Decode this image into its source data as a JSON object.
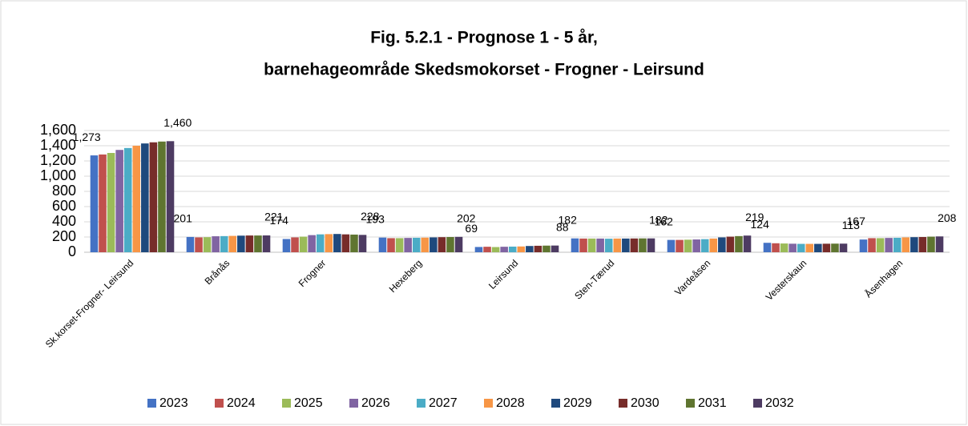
{
  "chart_data": {
    "type": "bar",
    "title": [
      "Fig. 5.2.1 - Prognose 1 - 5 år,",
      "barnehageområde Skedsmokorset - Frogner - Leirsund"
    ],
    "categories": [
      "Sk.korset-Frogner- Leirsund",
      "Brånås",
      "Frogner",
      "Hexeberg",
      "Leirsund",
      "Sten-Tærud",
      "Vardeåsen",
      "Vesterskaun",
      "Åsenhagen"
    ],
    "series": [
      {
        "name": "2023",
        "color": "#4472c4",
        "values": [
          1273,
          201,
          174,
          193,
          69,
          182,
          162,
          124,
          167
        ],
        "value_labels": [
          "1,273",
          "201",
          "174",
          "193",
          "69",
          "182",
          "162",
          "124",
          "167"
        ]
      },
      {
        "name": "2024",
        "color": "#c0504d",
        "values": [
          1285,
          195,
          195,
          185,
          72,
          180,
          162,
          118,
          185
        ]
      },
      {
        "name": "2025",
        "color": "#9bbb59",
        "values": [
          1305,
          198,
          205,
          185,
          68,
          180,
          165,
          115,
          185
        ]
      },
      {
        "name": "2026",
        "color": "#8064a2",
        "values": [
          1345,
          210,
          225,
          188,
          72,
          180,
          168,
          112,
          188
        ]
      },
      {
        "name": "2027",
        "color": "#4bacc6",
        "values": [
          1370,
          212,
          235,
          190,
          74,
          178,
          172,
          110,
          190
        ]
      },
      {
        "name": "2028",
        "color": "#f79646",
        "values": [
          1400,
          215,
          238,
          192,
          76,
          180,
          180,
          110,
          195
        ]
      },
      {
        "name": "2029",
        "color": "#1f497d",
        "values": [
          1430,
          218,
          240,
          195,
          82,
          180,
          195,
          110,
          198
        ]
      },
      {
        "name": "2030",
        "color": "#772c2a",
        "values": [
          1445,
          220,
          235,
          198,
          85,
          181,
          205,
          112,
          200
        ]
      },
      {
        "name": "2031",
        "color": "#5f7530",
        "values": [
          1455,
          220,
          232,
          200,
          87,
          182,
          212,
          113,
          205
        ]
      },
      {
        "name": "2032",
        "color": "#4d3b62",
        "values": [
          1460,
          221,
          228,
          202,
          88,
          182,
          219,
          113,
          208
        ],
        "value_labels": [
          "1,460",
          "221",
          "228",
          "202",
          "88",
          "182",
          "219",
          "113",
          "208"
        ]
      }
    ],
    "ylim": [
      0,
      1600
    ],
    "yticks": [
      0,
      200,
      400,
      600,
      800,
      {
        "value": 1000,
        "label": "1,000"
      },
      {
        "value": 1200,
        "label": "1,200"
      },
      {
        "value": 1400,
        "label": "1,400"
      },
      {
        "value": 1600,
        "label": "1,600"
      }
    ],
    "grid": true,
    "legend": "bottom"
  }
}
